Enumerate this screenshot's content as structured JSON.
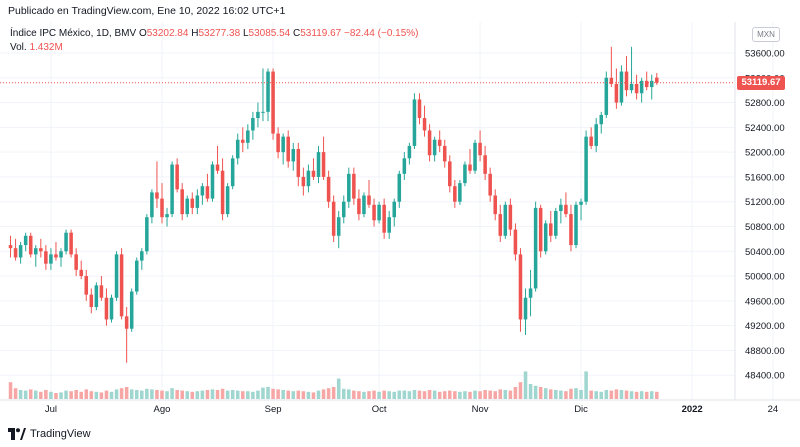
{
  "publish_line": "Publicado en TradingView.com, Ene 10, 2022 16:02 UTC+1",
  "legend": {
    "symbol": "Índice IPC México, 1D, BMV",
    "o_label": "O",
    "o_value": "53202.84",
    "h_label": "H",
    "h_value": "53277.38",
    "l_label": "L",
    "l_value": "53085.54",
    "c_label": "C",
    "c_value": "53119.67",
    "change": "−82.44 (−0.15%)",
    "vol_label": "Vol.",
    "vol_value": "1.432M"
  },
  "currency": "MXN",
  "last_price_tag": "53119.67",
  "footer_brand": "TradingView",
  "colors": {
    "up": "#26a69a",
    "down": "#ef5350",
    "up_vol": "#9fd6cf",
    "down_vol": "#f6a7a5",
    "grid": "#f0f3fa"
  },
  "chart_data": {
    "type": "candlestick",
    "title": "Índice IPC México, 1D, BMV",
    "y_ticks": [
      48400,
      48800,
      49200,
      49600,
      50000,
      50400,
      50800,
      51200,
      51600,
      52000,
      52400,
      52800,
      53200,
      53600
    ],
    "y_range": [
      48000,
      54100
    ],
    "x_labels": [
      {
        "label": "Jul",
        "index": 8
      },
      {
        "label": "Ago",
        "index": 30
      },
      {
        "label": "Sep",
        "index": 52
      },
      {
        "label": "Oct",
        "index": 73
      },
      {
        "label": "Nov",
        "index": 93
      },
      {
        "label": "Dic",
        "index": 113
      },
      {
        "label": "2022",
        "index": 135
      },
      {
        "label": "24",
        "index": 151
      }
    ],
    "last_close": 53119.67,
    "candles": [
      [
        50500,
        50650,
        50300,
        50450,
        0.28
      ],
      [
        50450,
        50600,
        50250,
        50300,
        0.18
      ],
      [
        50300,
        50550,
        50200,
        50500,
        0.15
      ],
      [
        50500,
        50700,
        50400,
        50650,
        0.14
      ],
      [
        50650,
        50700,
        50300,
        50350,
        0.16
      ],
      [
        50350,
        50500,
        50150,
        50450,
        0.14
      ],
      [
        50450,
        50600,
        50300,
        50400,
        0.12
      ],
      [
        50400,
        50500,
        50100,
        50200,
        0.15
      ],
      [
        50200,
        50450,
        50100,
        50350,
        0.12
      ],
      [
        50350,
        50550,
        50250,
        50300,
        0.1
      ],
      [
        50300,
        50450,
        50150,
        50400,
        0.11
      ],
      [
        50400,
        50750,
        50350,
        50700,
        0.14
      ],
      [
        50700,
        50750,
        50300,
        50350,
        0.13
      ],
      [
        50350,
        50450,
        50000,
        50100,
        0.15
      ],
      [
        50100,
        50250,
        49950,
        50000,
        0.12
      ],
      [
        50000,
        50100,
        49600,
        49700,
        0.16
      ],
      [
        49700,
        49800,
        49400,
        49500,
        0.13
      ],
      [
        49500,
        49900,
        49450,
        49850,
        0.12
      ],
      [
        49850,
        50000,
        49600,
        49650,
        0.11
      ],
      [
        49650,
        49800,
        49200,
        49300,
        0.14
      ],
      [
        49300,
        49700,
        49250,
        49650,
        0.12
      ],
      [
        49650,
        50400,
        49600,
        50350,
        0.16
      ],
      [
        50350,
        50450,
        49300,
        49350,
        0.18
      ],
      [
        49350,
        49500,
        48600,
        49150,
        0.2
      ],
      [
        49150,
        49800,
        49100,
        49750,
        0.16
      ],
      [
        49750,
        50300,
        49700,
        50250,
        0.15
      ],
      [
        50250,
        50450,
        50100,
        50400,
        0.14
      ],
      [
        50400,
        51000,
        50350,
        50950,
        0.17
      ],
      [
        50950,
        51400,
        50850,
        51350,
        0.16
      ],
      [
        51350,
        51850,
        51100,
        51250,
        0.15
      ],
      [
        51250,
        51500,
        50850,
        50950,
        0.14
      ],
      [
        50950,
        51100,
        50800,
        51000,
        0.13
      ],
      [
        51000,
        51850,
        50950,
        51800,
        0.18
      ],
      [
        51800,
        51900,
        51350,
        51400,
        0.15
      ],
      [
        51400,
        51500,
        50900,
        51000,
        0.14
      ],
      [
        51000,
        51300,
        50950,
        51250,
        0.13
      ],
      [
        51250,
        51350,
        51000,
        51100,
        0.12
      ],
      [
        51100,
        51400,
        51000,
        51300,
        0.13
      ],
      [
        51300,
        51500,
        51150,
        51450,
        0.14
      ],
      [
        51450,
        51650,
        51200,
        51250,
        0.15
      ],
      [
        51250,
        51850,
        51200,
        51800,
        0.16
      ],
      [
        51800,
        52100,
        51650,
        51700,
        0.15
      ],
      [
        51700,
        51900,
        50900,
        51000,
        0.17
      ],
      [
        51000,
        51500,
        50950,
        51450,
        0.14
      ],
      [
        51450,
        51950,
        51400,
        51900,
        0.15
      ],
      [
        51900,
        52300,
        51800,
        52200,
        0.14
      ],
      [
        52200,
        52400,
        52000,
        52150,
        0.13
      ],
      [
        52150,
        52450,
        52050,
        52350,
        0.13
      ],
      [
        52350,
        52650,
        52200,
        52550,
        0.12
      ],
      [
        52550,
        52800,
        52400,
        52650,
        0.14
      ],
      [
        52650,
        53350,
        52500,
        52650,
        0.19
      ],
      [
        52650,
        53350,
        52500,
        53300,
        0.2
      ],
      [
        53300,
        53350,
        52200,
        52300,
        0.17
      ],
      [
        52300,
        52400,
        51900,
        52000,
        0.16
      ],
      [
        52000,
        52300,
        51800,
        52250,
        0.15
      ],
      [
        52250,
        52350,
        51750,
        51850,
        0.14
      ],
      [
        51850,
        52150,
        51700,
        52050,
        0.13
      ],
      [
        52050,
        52150,
        51450,
        51600,
        0.14
      ],
      [
        51600,
        51750,
        51300,
        51450,
        0.13
      ],
      [
        51450,
        51800,
        51350,
        51700,
        0.12
      ],
      [
        51700,
        51900,
        51550,
        51600,
        0.11
      ],
      [
        51600,
        52100,
        51500,
        52000,
        0.14
      ],
      [
        52000,
        52250,
        51550,
        51600,
        0.16
      ],
      [
        51600,
        51700,
        51100,
        51200,
        0.18
      ],
      [
        51200,
        51300,
        50550,
        50650,
        0.2
      ],
      [
        50650,
        51050,
        50450,
        50950,
        0.34
      ],
      [
        50950,
        51300,
        50850,
        51200,
        0.17
      ],
      [
        51200,
        51750,
        51100,
        51650,
        0.16
      ],
      [
        51650,
        51750,
        51150,
        51250,
        0.14
      ],
      [
        51250,
        51400,
        50900,
        51000,
        0.13
      ],
      [
        51000,
        51350,
        50950,
        51300,
        0.12
      ],
      [
        51300,
        51550,
        51100,
        51150,
        0.13
      ],
      [
        51150,
        51250,
        50800,
        50900,
        0.14
      ],
      [
        50900,
        51200,
        50850,
        51150,
        0.12
      ],
      [
        51150,
        51250,
        50600,
        50700,
        0.14
      ],
      [
        50700,
        51050,
        50600,
        50950,
        0.13
      ],
      [
        50950,
        51250,
        50800,
        51200,
        0.12
      ],
      [
        51200,
        51700,
        51100,
        51650,
        0.14
      ],
      [
        51650,
        52000,
        51550,
        51900,
        0.14
      ],
      [
        51900,
        52150,
        51800,
        52100,
        0.13
      ],
      [
        52100,
        52950,
        52050,
        52850,
        0.15
      ],
      [
        52850,
        52950,
        52450,
        52550,
        0.14
      ],
      [
        52550,
        52750,
        52250,
        52350,
        0.13
      ],
      [
        52350,
        52450,
        51850,
        51950,
        0.15
      ],
      [
        51950,
        52250,
        51850,
        52200,
        0.14
      ],
      [
        52200,
        52350,
        52000,
        52100,
        0.12
      ],
      [
        52100,
        52200,
        51750,
        51850,
        0.13
      ],
      [
        51850,
        51950,
        51350,
        51450,
        0.14
      ],
      [
        51450,
        51550,
        51100,
        51200,
        0.13
      ],
      [
        51200,
        51550,
        51150,
        51500,
        0.12
      ],
      [
        51500,
        51850,
        51450,
        51800,
        0.13
      ],
      [
        51800,
        52050,
        51650,
        51700,
        0.12
      ],
      [
        51700,
        52200,
        51650,
        52150,
        0.14
      ],
      [
        52150,
        52350,
        51850,
        51950,
        0.13
      ],
      [
        51950,
        52100,
        51550,
        51650,
        0.15
      ],
      [
        51650,
        51750,
        51200,
        51300,
        0.14
      ],
      [
        51300,
        51400,
        50900,
        51000,
        0.13
      ],
      [
        51000,
        51150,
        50550,
        50650,
        0.16
      ],
      [
        50650,
        51200,
        50600,
        51150,
        0.15
      ],
      [
        51150,
        51250,
        50650,
        50750,
        0.14
      ],
      [
        50750,
        50850,
        50250,
        50350,
        0.2
      ],
      [
        50350,
        50450,
        49100,
        49300,
        0.28
      ],
      [
        49300,
        49800,
        49050,
        49650,
        0.46
      ],
      [
        49650,
        50100,
        49350,
        49800,
        0.25
      ],
      [
        49800,
        51200,
        49750,
        51100,
        0.22
      ],
      [
        51100,
        51150,
        50300,
        50400,
        0.2
      ],
      [
        50400,
        50900,
        50350,
        50850,
        0.18
      ],
      [
        50850,
        51050,
        50550,
        50650,
        0.16
      ],
      [
        50650,
        51100,
        50600,
        51050,
        0.15
      ],
      [
        51050,
        51250,
        50850,
        51150,
        0.14
      ],
      [
        51150,
        51350,
        50950,
        51000,
        0.13
      ],
      [
        51000,
        51150,
        50400,
        50500,
        0.17
      ],
      [
        50500,
        51200,
        50450,
        51150,
        0.18
      ],
      [
        51150,
        51250,
        50900,
        51200,
        0.15
      ],
      [
        51200,
        52350,
        51150,
        52250,
        0.46
      ],
      [
        52250,
        52400,
        52050,
        52100,
        0.14
      ],
      [
        52100,
        52550,
        52000,
        52450,
        0.13
      ],
      [
        52450,
        52650,
        52300,
        52600,
        0.12
      ],
      [
        52600,
        53300,
        52550,
        53200,
        0.15
      ],
      [
        53200,
        53700,
        53050,
        53100,
        0.14
      ],
      [
        53100,
        53350,
        52700,
        52800,
        0.16
      ],
      [
        52800,
        53400,
        52750,
        53300,
        0.15
      ],
      [
        53300,
        53550,
        52900,
        53000,
        0.14
      ],
      [
        53000,
        53700,
        52950,
        53100,
        0.13
      ],
      [
        53100,
        53250,
        52850,
        52950,
        0.12
      ],
      [
        52950,
        53200,
        52800,
        53150,
        0.13
      ],
      [
        53150,
        53300,
        53000,
        53050,
        0.12
      ],
      [
        53050,
        53250,
        52850,
        53150,
        0.13
      ],
      [
        53202.84,
        53277.38,
        53085.54,
        53119.67,
        0.12
      ]
    ]
  }
}
